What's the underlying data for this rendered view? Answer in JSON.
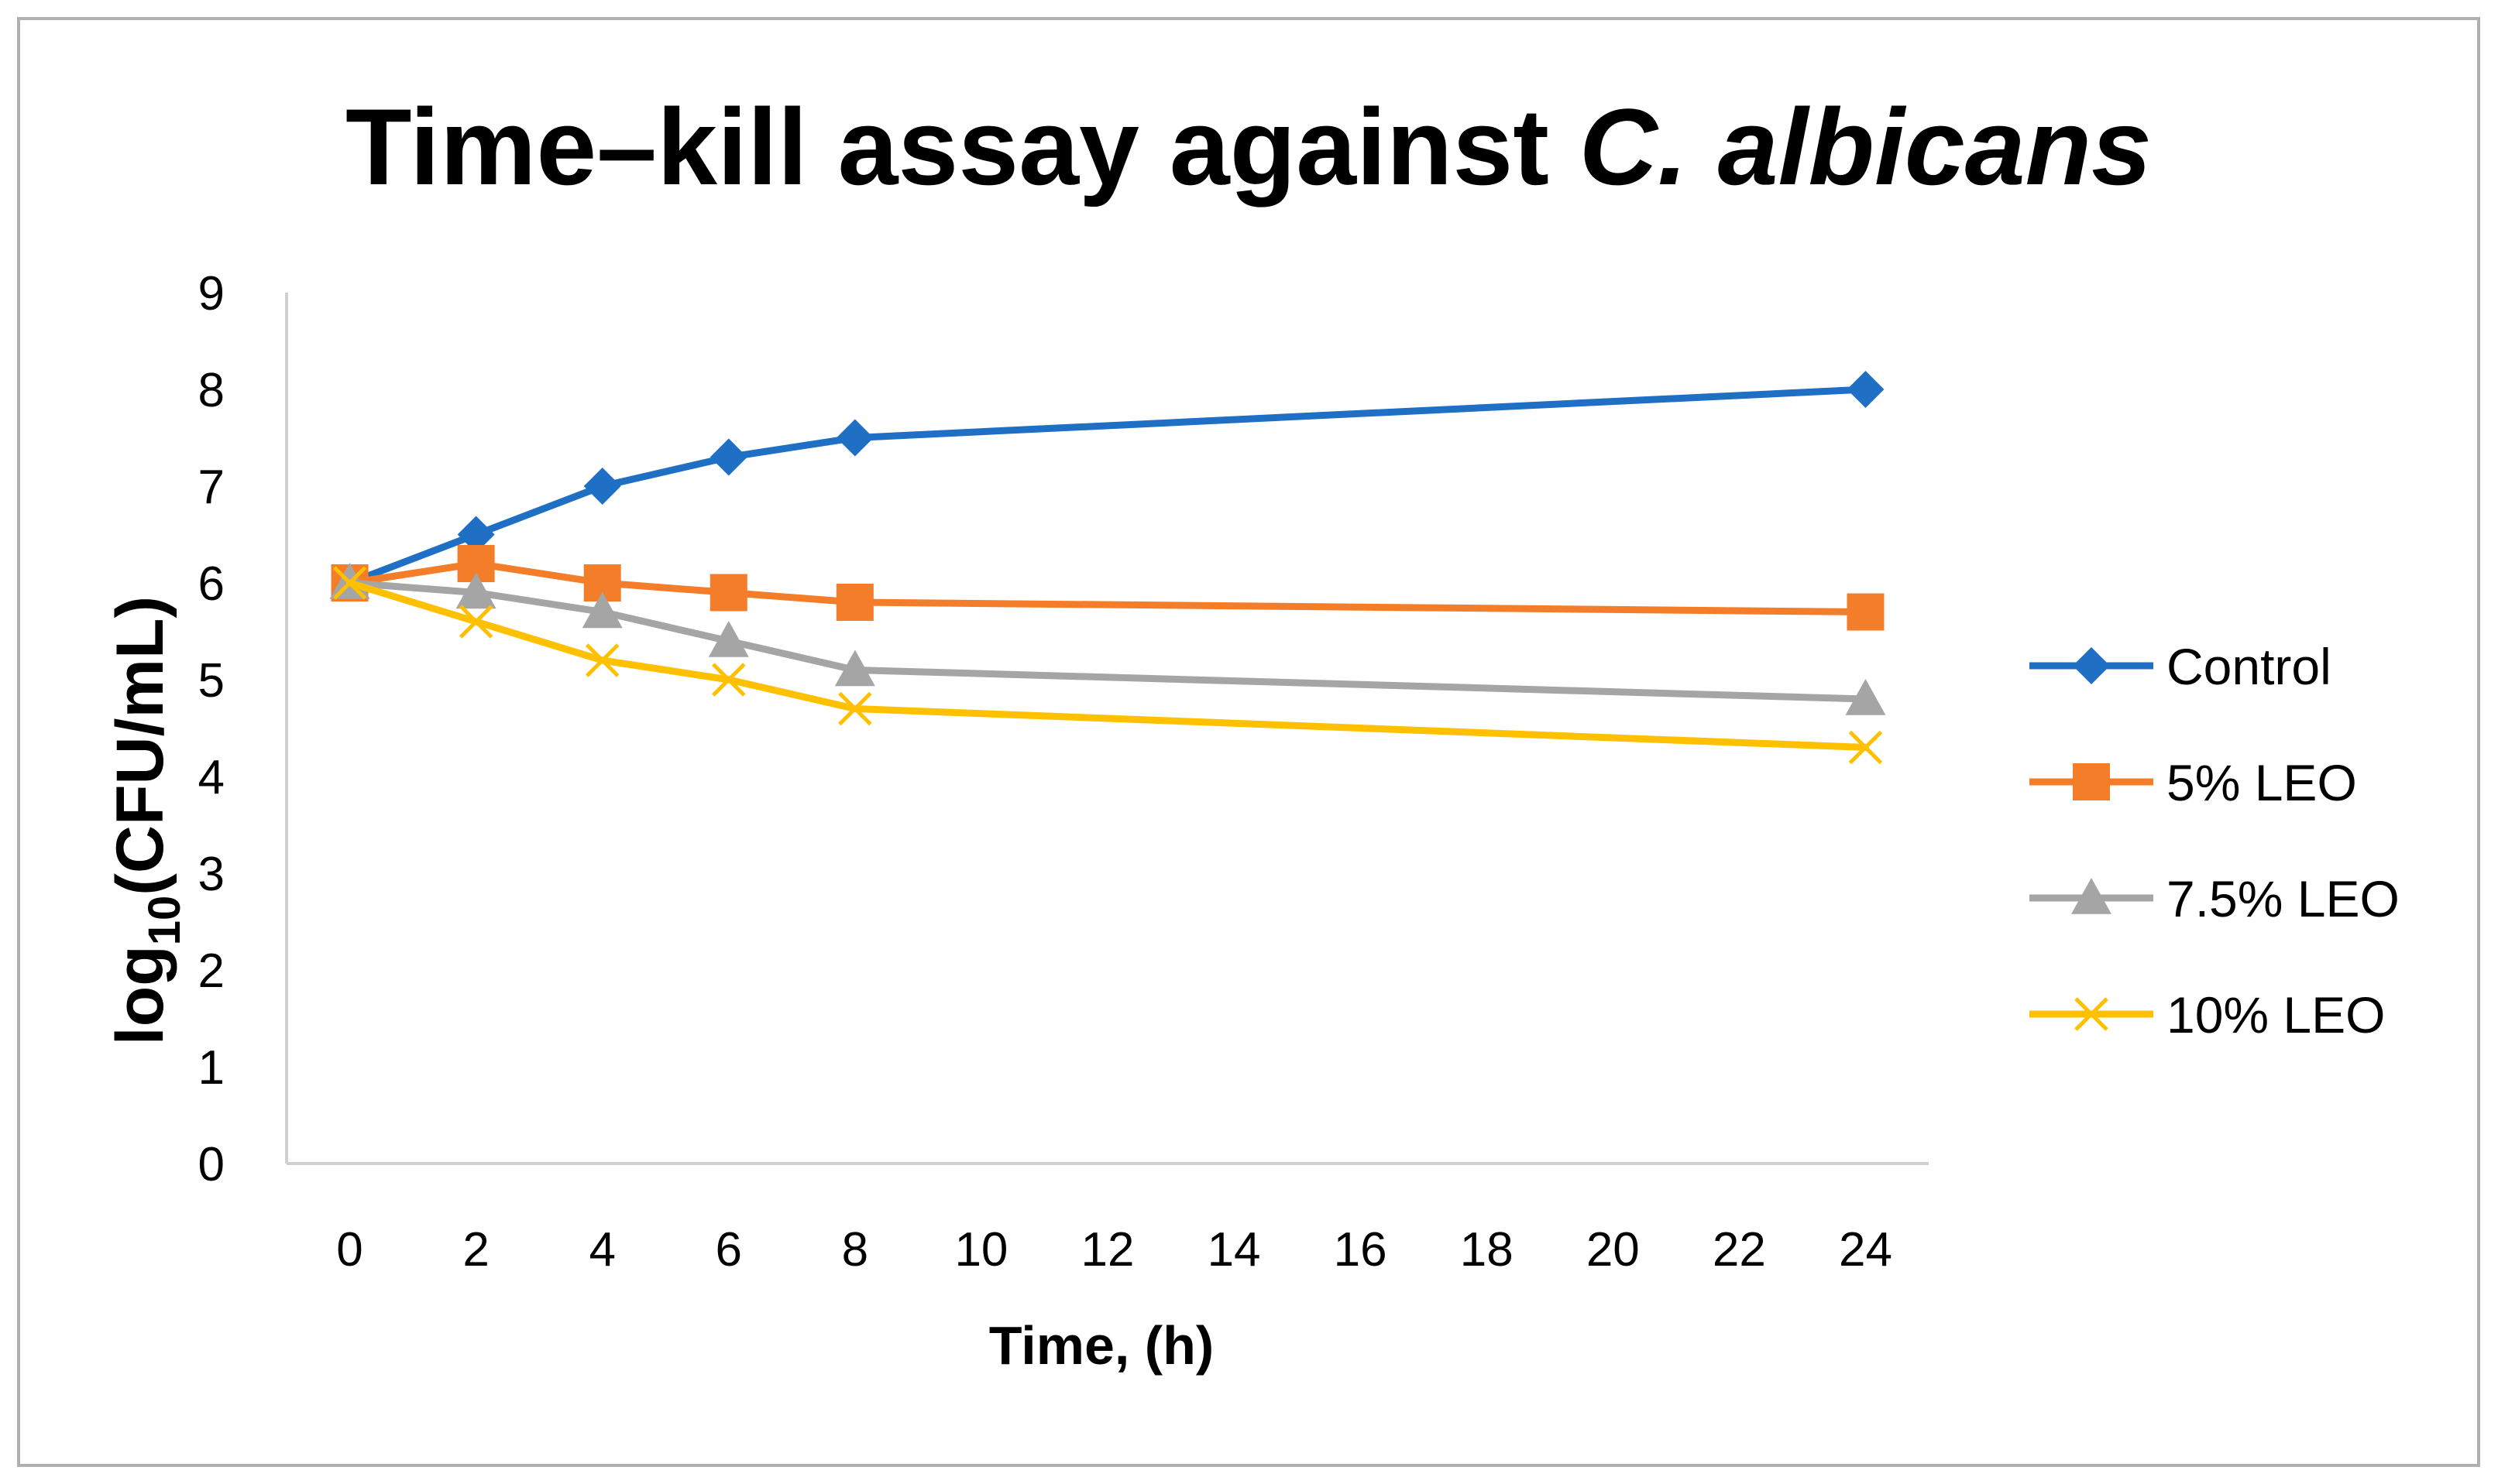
{
  "chart_data": {
    "type": "line",
    "title_main": "Time–kill assay against ",
    "title_italic": "C. albicans",
    "xlabel": "Time, (h)",
    "ylabel_prefix": "log",
    "ylabel_sub": "10",
    "ylabel_suffix": "(CFU/mL)",
    "categories": [
      "0",
      "2",
      "4",
      "6",
      "8",
      "10",
      "12",
      "14",
      "16",
      "18",
      "20",
      "22",
      "24"
    ],
    "y_ticks": [
      "0",
      "1",
      "2",
      "3",
      "4",
      "5",
      "6",
      "7",
      "8",
      "9"
    ],
    "ylim": [
      0,
      9
    ],
    "grid": false,
    "legend_position": "right",
    "series": [
      {
        "name": "Control",
        "color": "#1f6fc5",
        "marker": "diamond",
        "x": [
          0,
          2,
          4,
          6,
          8,
          24
        ],
        "values": [
          6.0,
          6.5,
          7.0,
          7.3,
          7.5,
          8.0
        ]
      },
      {
        "name": "5% LEO",
        "color": "#f47d2a",
        "marker": "square",
        "x": [
          0,
          2,
          4,
          6,
          8,
          24
        ],
        "values": [
          6.0,
          6.2,
          6.0,
          5.9,
          5.8,
          5.7
        ]
      },
      {
        "name": "7.5% LEO",
        "color": "#a5a5a5",
        "marker": "triangle",
        "x": [
          0,
          2,
          4,
          6,
          8,
          24
        ],
        "values": [
          6.0,
          5.9,
          5.7,
          5.4,
          5.1,
          4.8
        ]
      },
      {
        "name": "10% LEO",
        "color": "#ffc000",
        "marker": "cross",
        "x": [
          0,
          2,
          4,
          6,
          8,
          24
        ],
        "values": [
          6.0,
          5.6,
          5.2,
          5.0,
          4.7,
          4.3
        ]
      }
    ]
  }
}
